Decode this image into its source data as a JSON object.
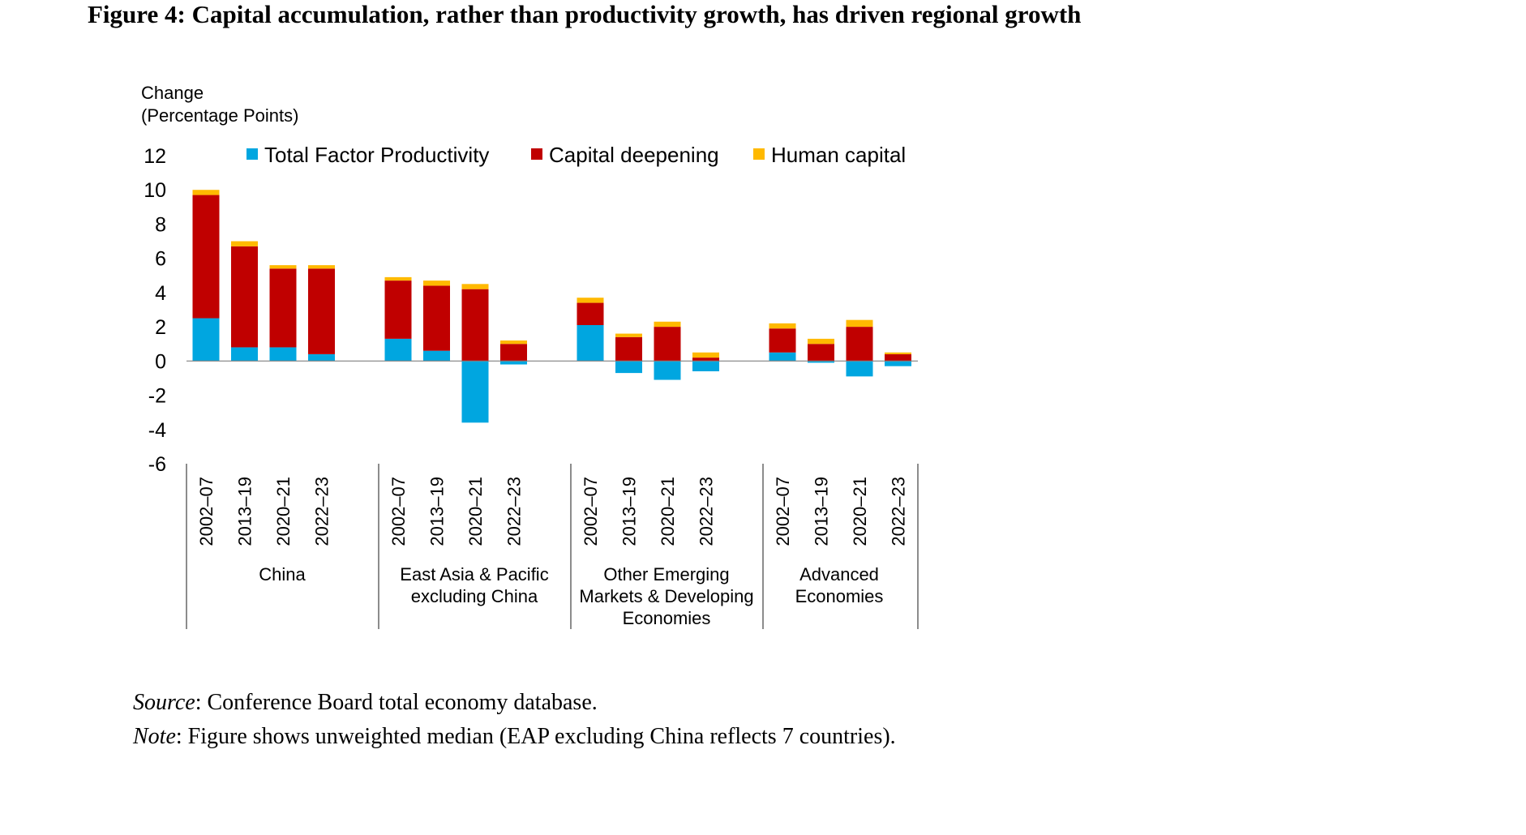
{
  "figure": {
    "title": "Figure 4: Capital accumulation, rather than productivity growth, has driven regional growth"
  },
  "chart_data": {
    "type": "bar",
    "stacked": true,
    "ylabel_lines": [
      "Change",
      "(Percentage Points)"
    ],
    "ylim": [
      -6,
      12
    ],
    "yticks": [
      12,
      10,
      8,
      6,
      4,
      2,
      0,
      -2,
      -4,
      -6
    ],
    "legend": {
      "position": "top",
      "entries": [
        {
          "name": "Total Factor Productivity",
          "color": "#00A6E0"
        },
        {
          "name": "Capital deepening",
          "color": "#C00000"
        },
        {
          "name": "Human capital",
          "color": "#FFB900"
        }
      ]
    },
    "groups": [
      {
        "label_lines": [
          "China"
        ],
        "categories": [
          "2002–07",
          "2013–19",
          "2020–21",
          "2022–23"
        ]
      },
      {
        "label_lines": [
          "East Asia & Pacific",
          "excluding China"
        ],
        "categories": [
          "2002–07",
          "2013–19",
          "2020–21",
          "2022–23"
        ]
      },
      {
        "label_lines": [
          "Other Emerging",
          "Markets & Developing",
          "Economies"
        ],
        "categories": [
          "2002–07",
          "2013–19",
          "2020–21",
          "2022–23"
        ]
      },
      {
        "label_lines": [
          "Advanced",
          "Economies"
        ],
        "categories": [
          "2002–07",
          "2013–19",
          "2020–21",
          "2022–23"
        ]
      }
    ],
    "series": [
      {
        "name": "Total Factor Productivity",
        "color": "#00A6E0",
        "values": [
          2.5,
          0.8,
          0.8,
          0.4,
          1.3,
          0.6,
          -3.6,
          -0.2,
          2.1,
          -0.7,
          -1.1,
          -0.6,
          0.5,
          -0.1,
          -0.9,
          -0.3
        ]
      },
      {
        "name": "Capital deepening",
        "color": "#C00000",
        "values": [
          7.2,
          5.9,
          4.6,
          5.0,
          3.4,
          3.8,
          4.2,
          1.0,
          1.3,
          1.4,
          2.0,
          0.2,
          1.4,
          1.0,
          2.0,
          0.4
        ]
      },
      {
        "name": "Human capital",
        "color": "#FFB900",
        "values": [
          0.3,
          0.3,
          0.2,
          0.2,
          0.2,
          0.3,
          0.3,
          0.2,
          0.3,
          0.2,
          0.3,
          0.3,
          0.3,
          0.3,
          0.4,
          0.1
        ]
      }
    ]
  },
  "notes": {
    "source_label": "Source",
    "source_text": ": Conference Board total economy database.",
    "note_label": "Note",
    "note_text": ": Figure shows unweighted median (EAP excluding China reflects 7 countries)."
  }
}
